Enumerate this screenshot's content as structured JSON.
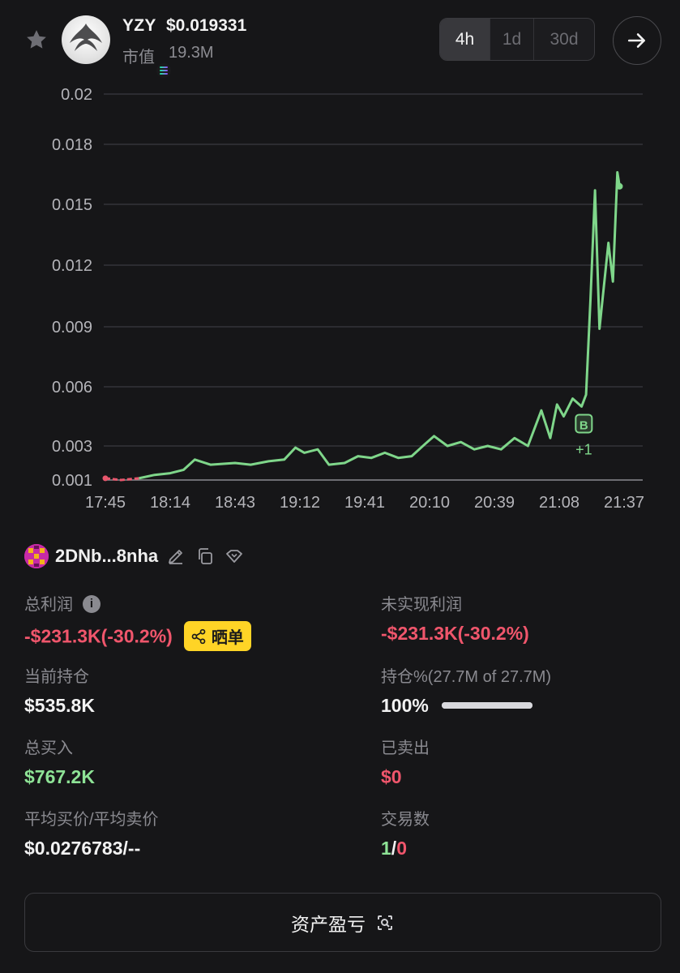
{
  "token": {
    "symbol": "YZY",
    "price": "$0.019331",
    "mcap_label": "市值",
    "mcap_value": "19.3M",
    "chain_icon": "solana-icon"
  },
  "range_tabs": [
    {
      "label": "4h",
      "active": true
    },
    {
      "label": "1d",
      "active": false
    },
    {
      "label": "30d",
      "active": false
    }
  ],
  "chart_data": {
    "type": "line",
    "y_ticks": [
      "0.02",
      "0.018",
      "0.015",
      "0.012",
      "0.009",
      "0.006",
      "0.003",
      "0.001"
    ],
    "x_ticks": [
      "17:45",
      "18:14",
      "18:43",
      "19:12",
      "19:41",
      "20:10",
      "20:39",
      "21:08",
      "21:37"
    ],
    "ylim": [
      0.001,
      0.02
    ],
    "grid": true,
    "series": [
      {
        "color": "#7fd68a",
        "points": [
          [
            "17:45",
            0.0011
          ],
          [
            "17:52",
            0.001
          ],
          [
            "18:00",
            0.0011
          ],
          [
            "18:07",
            0.0013
          ],
          [
            "18:14",
            0.0014
          ],
          [
            "18:20",
            0.0016
          ],
          [
            "18:25",
            0.0022
          ],
          [
            "18:32",
            0.0019
          ],
          [
            "18:43",
            0.002
          ],
          [
            "18:50",
            0.0019
          ],
          [
            "18:58",
            0.0021
          ],
          [
            "19:05",
            0.0022
          ],
          [
            "19:10",
            0.0029
          ],
          [
            "19:14",
            0.0026
          ],
          [
            "19:20",
            0.0028
          ],
          [
            "19:25",
            0.0019
          ],
          [
            "19:32",
            0.002
          ],
          [
            "19:38",
            0.0024
          ],
          [
            "19:44",
            0.0023
          ],
          [
            "19:50",
            0.0026
          ],
          [
            "19:56",
            0.0023
          ],
          [
            "20:02",
            0.0024
          ],
          [
            "20:08",
            0.0031
          ],
          [
            "20:12",
            0.0035
          ],
          [
            "20:18",
            0.003
          ],
          [
            "20:24",
            0.0032
          ],
          [
            "20:30",
            0.0028
          ],
          [
            "20:36",
            0.003
          ],
          [
            "20:42",
            0.0028
          ],
          [
            "20:48",
            0.0034
          ],
          [
            "20:54",
            0.003
          ],
          [
            "21:00",
            0.0048
          ],
          [
            "21:04",
            0.0034
          ],
          [
            "21:07",
            0.0051
          ],
          [
            "21:10",
            0.0045
          ],
          [
            "21:14",
            0.0054
          ],
          [
            "21:18",
            0.005
          ],
          [
            "21:20",
            0.0056
          ],
          [
            "21:22",
            0.0104
          ],
          [
            "21:24",
            0.0157
          ],
          [
            "21:26",
            0.0089
          ],
          [
            "21:28",
            0.011
          ],
          [
            "21:30",
            0.0131
          ],
          [
            "21:32",
            0.0112
          ],
          [
            "21:34",
            0.0166
          ],
          [
            "21:35",
            0.0159
          ]
        ]
      }
    ],
    "annotations": [
      {
        "x": "21:19",
        "y": 0.0052,
        "label": "B",
        "sub": "+1"
      }
    ]
  },
  "wallet": {
    "address": "2DNb...8nha",
    "edit_icon": "pencil-icon",
    "copy_icon": "copy-icon",
    "tag_icon": "tag-icon"
  },
  "stats": {
    "total_profit": {
      "label": "总利润",
      "value": "-$231.3K(-30.2%)"
    },
    "share_label": "晒单",
    "unrealized": {
      "label": "未实现利润",
      "value": "-$231.3K(-30.2%)"
    },
    "holding": {
      "label": "当前持仓",
      "value": "$535.8K"
    },
    "hold_pct": {
      "label": "持仓%(27.7M of 27.7M)",
      "value": "100%",
      "fill": 1.0
    },
    "total_buy": {
      "label": "总买入",
      "value": "$767.2K"
    },
    "sold": {
      "label": "已卖出",
      "value": "$0"
    },
    "avg_price": {
      "label": "平均买价/平均卖价",
      "value": "$0.0276783/--"
    },
    "trades": {
      "label": "交易数",
      "buys": "1",
      "sep": "/",
      "sells": "0"
    }
  },
  "pnl_button": {
    "label": "资产盈亏"
  },
  "colors": {
    "up": "#8ee396",
    "down": "#f0566c",
    "accent": "#ffd426",
    "bg": "#161618"
  }
}
